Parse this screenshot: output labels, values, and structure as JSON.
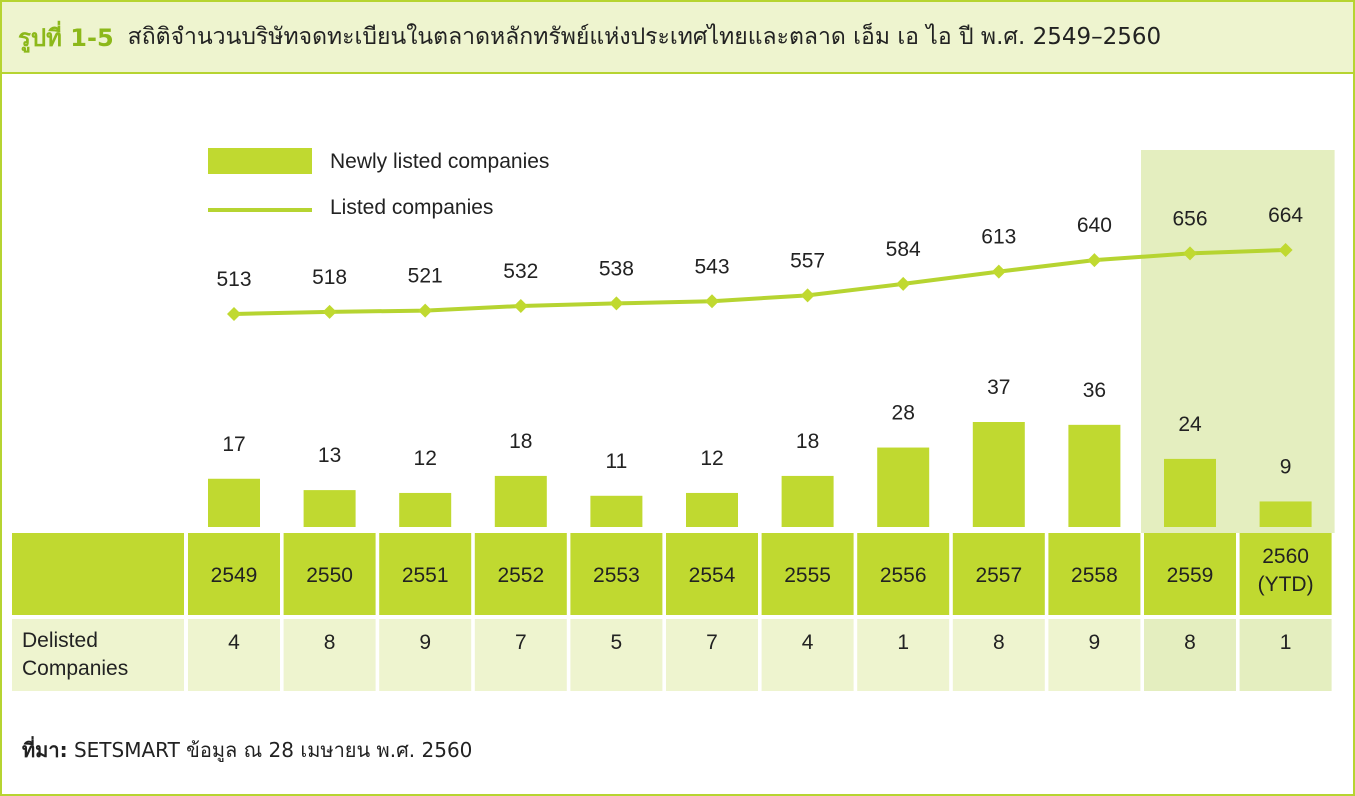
{
  "figure": {
    "number": "รูปที่ 1-5",
    "title": "สถิติจำนวนบริษัทจดทะเบียนในตลาดหลักทรัพย์แห่งประเทศไทยและตลาด เอ็ม เอ ไอ ปี พ.ศ. 2549–2560"
  },
  "source": {
    "label": "ที่มา:",
    "text": "SETSMART ข้อมูล ณ 28 เมษายน พ.ศ. 2560"
  },
  "colors": {
    "accent": "#c0d930",
    "line": "#b6d431",
    "header_bg": "#eef4cf",
    "cell_bg": "#eef4cf",
    "highlight_bg": "#e4eebf"
  },
  "chart_data": {
    "type": "bar",
    "categories": [
      "2549",
      "2550",
      "2551",
      "2552",
      "2553",
      "2554",
      "2555",
      "2556",
      "2557",
      "2558",
      "2559",
      "2560\n(YTD)"
    ],
    "series": [
      {
        "name": "Newly listed companies",
        "type": "bar",
        "values": [
          17,
          13,
          12,
          18,
          11,
          12,
          18,
          28,
          37,
          36,
          24,
          9
        ]
      },
      {
        "name": "Listed companies",
        "type": "line",
        "values": [
          513,
          518,
          521,
          532,
          538,
          543,
          557,
          584,
          613,
          640,
          656,
          664
        ]
      }
    ],
    "table_row": {
      "label": "Delisted\nCompanies",
      "values": [
        4,
        8,
        9,
        7,
        5,
        7,
        4,
        1,
        8,
        9,
        8,
        1
      ]
    },
    "highlighted_categories": [
      "2559",
      "2560\n(YTD)"
    ],
    "legend_position": "top-left",
    "grid": false
  }
}
